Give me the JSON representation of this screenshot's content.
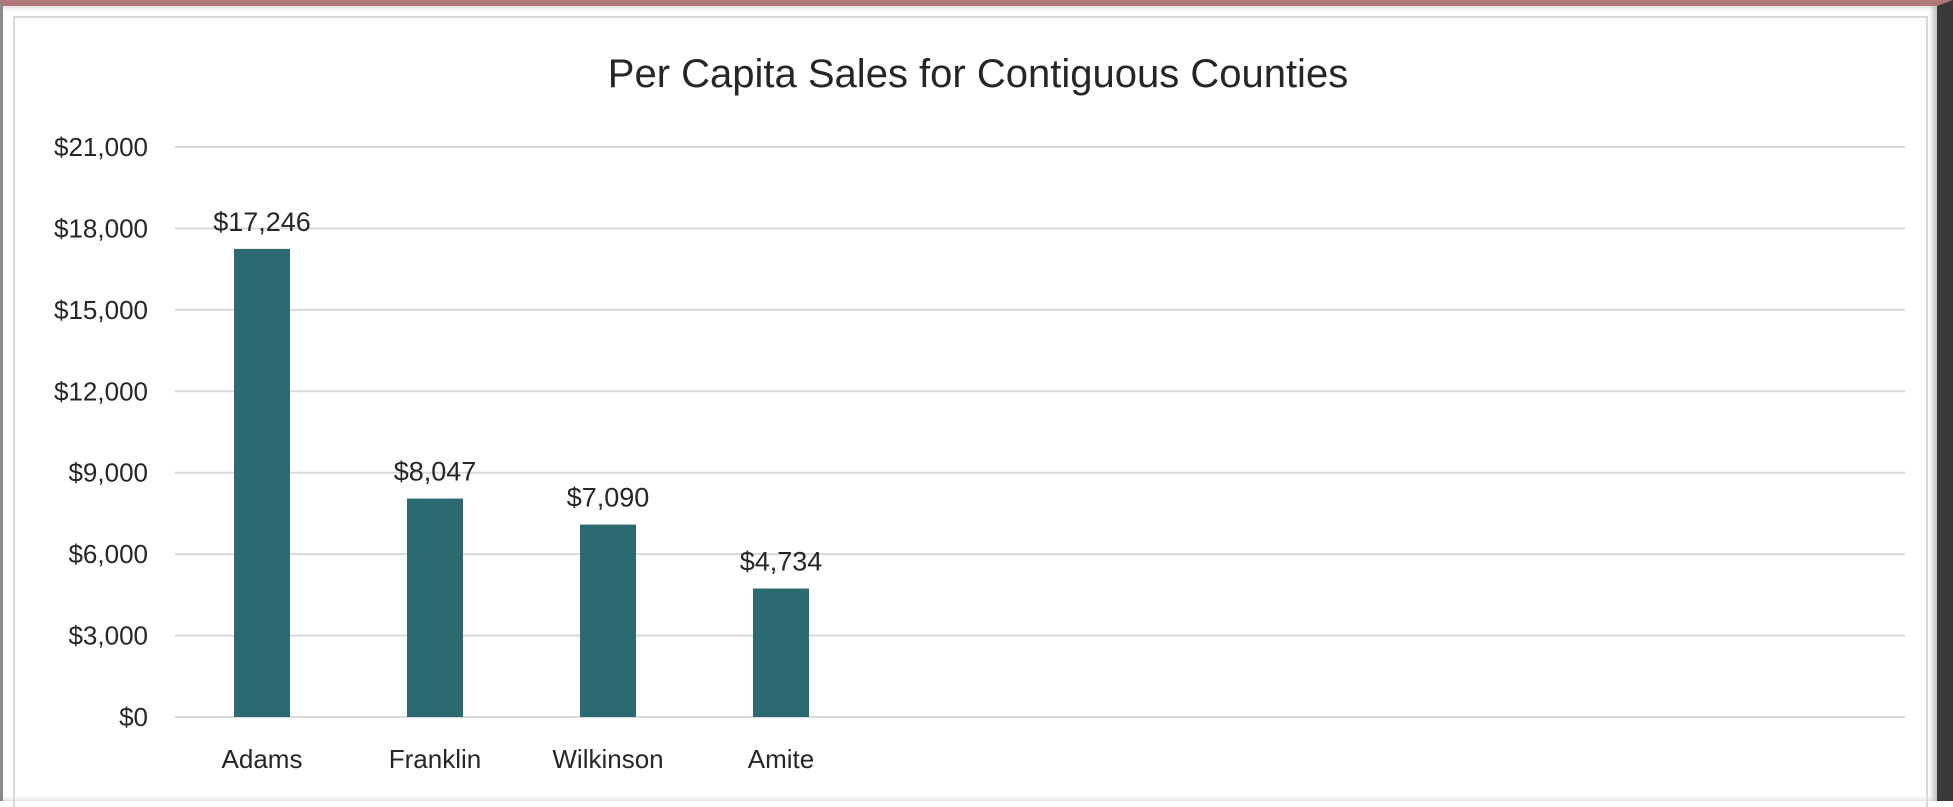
{
  "chart_data": {
    "type": "bar",
    "title": "Per Capita Sales for Contiguous Counties",
    "xlabel": "",
    "ylabel": "",
    "categories": [
      "Adams",
      "Franklin",
      "Wilkinson",
      "Amite"
    ],
    "values": [
      17246,
      8047,
      7090,
      4734
    ],
    "data_labels": [
      "$17,246",
      "$8,047",
      "$7,090",
      "$4,734"
    ],
    "ylim": [
      0,
      21000
    ],
    "y_ticks": [
      0,
      3000,
      6000,
      9000,
      12000,
      15000,
      18000,
      21000
    ],
    "y_tick_labels": [
      "$0",
      "$3,000",
      "$6,000",
      "$9,000",
      "$12,000",
      "$15,000",
      "$18,000",
      "$21,000"
    ],
    "grid": true,
    "legend": "none",
    "bar_color": "#2a6a70",
    "grid_color": "#d9d9d9"
  }
}
